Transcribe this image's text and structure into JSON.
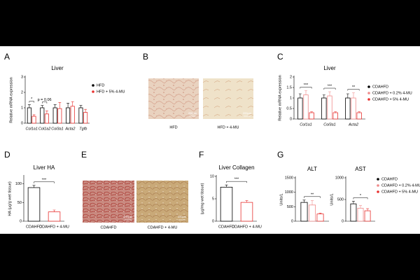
{
  "chart_data": [
    {
      "type": "bar",
      "panel": "A",
      "title": "Liver",
      "ylabel": "Relative mRNA expression",
      "categories": [
        "Col1a1",
        "Col1a2",
        "Col3a1",
        "Acta2",
        "Tgfb"
      ],
      "series": [
        {
          "name": "HFD",
          "color": "#000000",
          "values": [
            1.0,
            1.0,
            1.0,
            1.0,
            1.0
          ],
          "errors": [
            0.2,
            0.15,
            0.2,
            0.3,
            0.15
          ]
        },
        {
          "name": "HFD + 5% 4-MU",
          "color": "#e8312f",
          "values": [
            0.45,
            0.6,
            0.95,
            1.1,
            0.7
          ],
          "errors": [
            0.1,
            0.2,
            0.4,
            0.3,
            0.2
          ]
        }
      ],
      "significance": [
        "*",
        "p = 0.06",
        null,
        null,
        null
      ],
      "ylim": [
        0,
        3
      ],
      "yticks": [
        0,
        1,
        2,
        3
      ],
      "legend": "right"
    },
    {
      "type": "bar",
      "panel": "C",
      "title": "Liver",
      "ylabel": "Relative mRNA expression",
      "categories": [
        "Col1a1",
        "Col3a1",
        "Acta2"
      ],
      "series": [
        {
          "name": "CDAHFD",
          "color": "#000000",
          "values": [
            1.0,
            1.0,
            1.0
          ],
          "errors": [
            0.2,
            0.15,
            0.2
          ]
        },
        {
          "name": "CDAHFD + 0.2% 4-MU",
          "color": "#f08a8a",
          "values": [
            1.15,
            1.1,
            1.0
          ],
          "errors": [
            0.2,
            0.2,
            0.25
          ]
        },
        {
          "name": "CDAHFD + 5% 4-MU",
          "color": "#e8312f",
          "values": [
            0.3,
            0.3,
            0.3
          ],
          "errors": [
            0.05,
            0.05,
            0.05
          ]
        }
      ],
      "significance": [
        "***",
        "***",
        "**"
      ],
      "ylim": [
        0,
        2
      ],
      "yticks": [
        0,
        0.5,
        1,
        1.5,
        2
      ],
      "legend": "right"
    },
    {
      "type": "bar",
      "panel": "D",
      "title": "Liver HA",
      "ylabel": "HA (µg/g wet tissue)",
      "categories": [
        "CDAHFD",
        "CDAHFD + 4-MU"
      ],
      "values": [
        90,
        25
      ],
      "errors": [
        6,
        5
      ],
      "colors": [
        "#000000",
        "#e8312f"
      ],
      "significance": "***",
      "ylim": [
        0,
        120
      ],
      "yticks": [
        0,
        50,
        100
      ]
    },
    {
      "type": "bar",
      "panel": "F",
      "title": "Liver Collagen",
      "ylabel": "(µg/mg wet tissue)",
      "categories": [
        "CDAHFD",
        "CDAHFD + 4-MU"
      ],
      "values": [
        7.6,
        4.2
      ],
      "errors": [
        0.5,
        0.4
      ],
      "colors": [
        "#000000",
        "#e8312f"
      ],
      "significance": "***",
      "ylim": [
        0,
        10
      ],
      "yticks": [
        0,
        5,
        10
      ]
    },
    {
      "type": "bar",
      "panel": "G",
      "ylabel": "Units/L",
      "legend": "right",
      "series": [
        {
          "name": "CDAHFD",
          "color": "#000000"
        },
        {
          "name": "CDAHFD + 0.2% 4-MU",
          "color": "#f08a8a"
        },
        {
          "name": "CDAHFD + 5% 4-MU",
          "color": "#e8312f"
        }
      ],
      "subplots": [
        {
          "title": "ALT",
          "values": [
            650,
            560,
            250
          ],
          "errors": [
            80,
            150,
            30
          ],
          "significance": "**",
          "ylim": [
            0,
            1500
          ],
          "yticks": [
            0,
            500,
            1000,
            1500
          ]
        },
        {
          "title": "AST",
          "values": [
            400,
            300,
            240
          ],
          "errors": [
            60,
            60,
            50
          ],
          "significance": "*",
          "ylim": [
            0,
            1000
          ],
          "yticks": [
            0,
            500,
            1000
          ]
        }
      ]
    }
  ],
  "images": [
    {
      "panel": "B",
      "items": [
        {
          "caption": "HFD",
          "scale": "200µm"
        },
        {
          "caption": "HFD + 4-MU",
          "scale": "200µm"
        }
      ]
    },
    {
      "panel": "E",
      "items": [
        {
          "caption": "CDAHFD",
          "scale": "200µm"
        },
        {
          "caption": "CDAHFD + 4-MU",
          "scale": "200µm"
        }
      ]
    }
  ]
}
